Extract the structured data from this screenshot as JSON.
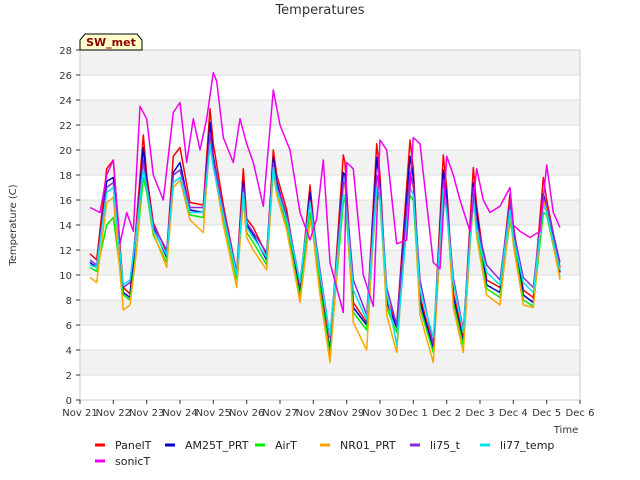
{
  "chart_data": {
    "type": "line",
    "title": "Temperatures",
    "xlabel": "Time",
    "ylabel": "Temperature (C)",
    "site_label": "SW_met",
    "ylim": [
      0,
      28
    ],
    "yticks": [
      0,
      2,
      4,
      6,
      8,
      10,
      12,
      14,
      16,
      18,
      20,
      22,
      24,
      26,
      28
    ],
    "xlim": [
      0,
      15
    ],
    "xticks": [
      {
        "x": 0,
        "label": "Nov 21"
      },
      {
        "x": 1,
        "label": "Nov 22"
      },
      {
        "x": 2,
        "label": "Nov 23"
      },
      {
        "x": 3,
        "label": "Nov 24"
      },
      {
        "x": 4,
        "label": "Nov 25"
      },
      {
        "x": 5,
        "label": "Nov 26"
      },
      {
        "x": 6,
        "label": "Nov 27"
      },
      {
        "x": 7,
        "label": "Nov 28"
      },
      {
        "x": 8,
        "label": "Nov 29"
      },
      {
        "x": 9,
        "label": "Nov 30"
      },
      {
        "x": 10,
        "label": "Dec 1"
      },
      {
        "x": 11,
        "label": "Dec 2"
      },
      {
        "x": 12,
        "label": "Dec 3"
      },
      {
        "x": 13,
        "label": "Dec 4"
      },
      {
        "x": 14,
        "label": "Dec 5"
      },
      {
        "x": 15,
        "label": "Dec 6"
      }
    ],
    "grid": true,
    "legend_position": "bottom",
    "series": [
      {
        "name": "PanelT",
        "color": "#ff0000",
        "x": [
          0.3,
          0.5,
          0.8,
          1.0,
          1.3,
          1.5,
          1.7,
          1.9,
          2.0,
          2.2,
          2.6,
          2.8,
          3.0,
          3.3,
          3.7,
          3.9,
          4.0,
          4.3,
          4.7,
          4.9,
          5.0,
          5.2,
          5.6,
          5.8,
          5.9,
          6.2,
          6.6,
          6.9,
          7.0,
          7.2,
          7.5,
          7.9,
          7.95,
          8.2,
          8.6,
          8.9,
          9.0,
          9.2,
          9.5,
          9.9,
          10.0,
          10.2,
          10.6,
          10.9,
          11.0,
          11.2,
          11.5,
          11.8,
          11.9,
          12.2,
          12.6,
          12.9,
          13.0,
          13.3,
          13.6,
          13.9,
          14.0,
          14.4
        ],
        "y": [
          11.7,
          11.2,
          18.5,
          19.2,
          9.0,
          8.5,
          14.5,
          21.2,
          18.0,
          14.2,
          11.8,
          19.5,
          20.2,
          15.8,
          15.6,
          23.3,
          20.5,
          15.6,
          10.2,
          18.5,
          14.5,
          13.8,
          11.6,
          20.0,
          18.0,
          15.2,
          8.8,
          17.2,
          14.5,
          9.6,
          4.0,
          19.6,
          19.0,
          7.8,
          6.2,
          20.5,
          18.0,
          8.2,
          6.0,
          20.8,
          18.5,
          8.3,
          4.2,
          19.6,
          17.0,
          8.6,
          5.0,
          18.6,
          15.5,
          9.6,
          9.0,
          16.5,
          14.0,
          8.8,
          8.2,
          17.8,
          16.0,
          10.6
        ]
      },
      {
        "name": "AM25T_PRT",
        "color": "#0000cc",
        "x": [
          0.3,
          0.5,
          0.8,
          1.0,
          1.3,
          1.5,
          1.7,
          1.9,
          2.0,
          2.2,
          2.6,
          2.8,
          3.0,
          3.3,
          3.7,
          3.9,
          4.0,
          4.3,
          4.7,
          4.9,
          5.0,
          5.2,
          5.6,
          5.8,
          5.9,
          6.2,
          6.6,
          6.9,
          7.0,
          7.2,
          7.5,
          7.9,
          7.95,
          8.2,
          8.6,
          8.9,
          9.0,
          9.2,
          9.5,
          9.9,
          10.0,
          10.2,
          10.6,
          10.9,
          11.0,
          11.2,
          11.5,
          11.8,
          11.9,
          12.2,
          12.6,
          12.9,
          13.0,
          13.3,
          13.6,
          13.9,
          14.0,
          14.4
        ],
        "y": [
          11.0,
          10.6,
          17.5,
          17.8,
          8.6,
          8.2,
          13.8,
          20.2,
          17.5,
          13.8,
          11.4,
          18.2,
          19.0,
          15.2,
          15.0,
          22.2,
          19.5,
          15.0,
          9.8,
          17.5,
          14.0,
          13.2,
          11.2,
          19.4,
          17.5,
          14.6,
          8.4,
          16.6,
          14.0,
          9.2,
          3.8,
          18.2,
          18.0,
          7.4,
          6.0,
          19.4,
          17.2,
          7.8,
          5.8,
          19.5,
          17.8,
          7.9,
          4.0,
          18.4,
          16.4,
          8.2,
          4.6,
          17.4,
          15.0,
          9.2,
          8.6,
          15.6,
          13.6,
          8.4,
          7.8,
          16.5,
          15.5,
          10.2
        ]
      },
      {
        "name": "AirT",
        "color": "#00ee00",
        "x": [
          0.3,
          0.5,
          0.8,
          1.0,
          1.3,
          1.5,
          1.7,
          1.9,
          2.0,
          2.2,
          2.6,
          2.8,
          3.0,
          3.3,
          3.7,
          3.9,
          4.0,
          4.3,
          4.7,
          4.9,
          5.0,
          5.2,
          5.6,
          5.8,
          5.9,
          6.2,
          6.6,
          6.9,
          7.0,
          7.2,
          7.5,
          7.9,
          7.95,
          8.2,
          8.6,
          8.9,
          9.0,
          9.2,
          9.5,
          9.9,
          10.0,
          10.2,
          10.6,
          10.9,
          11.0,
          11.2,
          11.5,
          11.8,
          11.9,
          12.2,
          12.6,
          12.9,
          13.0,
          13.3,
          13.6,
          13.9,
          14.0,
          14.4
        ],
        "y": [
          10.6,
          10.3,
          14.0,
          14.6,
          8.4,
          8.0,
          12.2,
          17.8,
          16.6,
          13.2,
          11.0,
          17.4,
          17.8,
          14.8,
          14.6,
          21.0,
          19.0,
          14.6,
          9.6,
          16.4,
          13.4,
          12.6,
          10.8,
          18.6,
          16.8,
          14.0,
          8.2,
          15.0,
          13.4,
          9.0,
          3.6,
          15.8,
          16.2,
          7.0,
          5.6,
          16.6,
          16.0,
          7.4,
          5.4,
          16.4,
          16.0,
          7.4,
          3.8,
          16.0,
          15.4,
          7.8,
          4.4,
          16.0,
          13.5,
          8.9,
          8.2,
          14.4,
          12.8,
          8.0,
          7.5,
          15.0,
          14.8,
          9.8
        ]
      },
      {
        "name": "NR01_PRT",
        "color": "#ffa500",
        "x": [
          0.3,
          0.5,
          0.8,
          1.0,
          1.3,
          1.5,
          1.7,
          1.9,
          2.0,
          2.2,
          2.6,
          2.8,
          3.0,
          3.3,
          3.7,
          3.9,
          4.0,
          4.3,
          4.7,
          4.9,
          5.0,
          5.2,
          5.6,
          5.8,
          5.9,
          6.2,
          6.6,
          6.9,
          7.0,
          7.2,
          7.5,
          7.9,
          7.95,
          8.2,
          8.6,
          8.9,
          9.0,
          9.2,
          9.5,
          9.9,
          10.0,
          10.2,
          10.6,
          10.9,
          11.0,
          11.2,
          11.5,
          11.8,
          11.9,
          12.2,
          12.6,
          12.9,
          13.0,
          13.3,
          13.6,
          13.9,
          14.0,
          14.4
        ],
        "y": [
          9.8,
          9.4,
          15.8,
          16.2,
          7.2,
          7.6,
          12.0,
          19.0,
          17.0,
          13.4,
          10.6,
          17.0,
          17.6,
          14.4,
          13.4,
          21.0,
          18.8,
          14.0,
          9.0,
          16.0,
          13.0,
          12.0,
          10.4,
          18.2,
          16.4,
          13.6,
          7.8,
          14.4,
          13.0,
          8.4,
          3.0,
          17.0,
          17.4,
          6.2,
          4.0,
          17.8,
          16.8,
          6.8,
          3.8,
          18.0,
          17.0,
          6.8,
          3.0,
          16.8,
          15.6,
          7.4,
          3.8,
          16.4,
          13.0,
          8.4,
          7.6,
          15.0,
          12.4,
          7.6,
          7.4,
          16.0,
          15.2,
          9.6
        ]
      },
      {
        "name": "li75_t",
        "color": "#8a2be2",
        "x": [
          0.3,
          0.5,
          0.8,
          1.0,
          1.3,
          1.5,
          1.7,
          1.9,
          2.0,
          2.2,
          2.6,
          2.8,
          3.0,
          3.3,
          3.7,
          3.9,
          4.0,
          4.3,
          4.7,
          4.9,
          5.0,
          5.2,
          5.6,
          5.8,
          5.9,
          6.2,
          6.6,
          6.9,
          7.0,
          7.2,
          7.5,
          7.9,
          7.95,
          8.2,
          8.6,
          8.9,
          9.0,
          9.2,
          9.5,
          9.9,
          10.0,
          10.2,
          10.6,
          10.9,
          11.0,
          11.2,
          11.5,
          11.8,
          11.9,
          12.2,
          12.6,
          12.9,
          13.0,
          13.3,
          13.6,
          13.9,
          14.0,
          14.4
        ],
        "y": [
          11.2,
          10.8,
          17.0,
          17.4,
          9.0,
          9.4,
          14.0,
          19.2,
          17.2,
          14.0,
          12.0,
          18.0,
          18.4,
          15.4,
          15.4,
          21.4,
          19.2,
          15.2,
          10.2,
          17.0,
          14.2,
          13.4,
          11.8,
          19.0,
          17.2,
          14.8,
          9.4,
          16.0,
          14.2,
          10.4,
          5.0,
          17.4,
          17.4,
          9.6,
          6.8,
          18.0,
          17.0,
          9.0,
          6.0,
          18.2,
          17.2,
          9.6,
          4.4,
          17.6,
          15.8,
          9.8,
          5.6,
          17.0,
          14.2,
          10.8,
          9.6,
          15.8,
          13.6,
          9.8,
          9.0,
          16.2,
          15.6,
          11.0
        ]
      },
      {
        "name": "li77_temp",
        "color": "#00e5ee",
        "x": [
          0.3,
          0.5,
          0.8,
          1.0,
          1.3,
          1.5,
          1.7,
          1.9,
          2.0,
          2.2,
          2.6,
          2.8,
          3.0,
          3.3,
          3.7,
          3.9,
          4.0,
          4.3,
          4.7,
          4.9,
          5.0,
          5.2,
          5.6,
          5.8,
          5.9,
          6.2,
          6.6,
          6.9,
          7.0,
          7.2,
          7.5,
          7.9,
          7.95,
          8.2,
          8.6,
          8.9,
          9.0,
          9.2,
          9.5,
          9.9,
          10.0,
          10.2,
          10.6,
          10.9,
          11.0,
          11.2,
          11.5,
          11.8,
          11.9,
          12.2,
          12.6,
          12.9,
          13.0,
          13.3,
          13.6,
          13.9,
          14.0,
          14.4
        ],
        "y": [
          10.8,
          10.6,
          16.6,
          17.0,
          9.2,
          9.6,
          13.6,
          18.4,
          17.0,
          13.6,
          11.6,
          17.4,
          17.8,
          15.0,
          15.0,
          20.4,
          18.6,
          14.8,
          10.0,
          16.6,
          13.8,
          13.0,
          11.4,
          18.6,
          16.8,
          14.4,
          9.4,
          15.8,
          13.8,
          10.0,
          5.2,
          16.4,
          16.4,
          8.8,
          6.4,
          17.0,
          16.2,
          8.6,
          4.4,
          17.0,
          16.4,
          8.8,
          5.0,
          16.8,
          15.0,
          9.4,
          5.4,
          16.2,
          13.6,
          10.2,
          9.2,
          15.2,
          13.0,
          9.4,
          8.6,
          15.6,
          15.0,
          10.4
        ]
      },
      {
        "name": "sonicT",
        "color": "#ee00ee",
        "x": [
          0.3,
          0.6,
          0.8,
          1.0,
          1.2,
          1.4,
          1.6,
          1.8,
          2.0,
          2.2,
          2.5,
          2.8,
          3.0,
          3.2,
          3.4,
          3.6,
          3.8,
          4.0,
          4.1,
          4.3,
          4.6,
          4.8,
          5.0,
          5.2,
          5.5,
          5.8,
          6.0,
          6.3,
          6.6,
          6.9,
          7.1,
          7.3,
          7.5,
          7.6,
          7.9,
          8.0,
          8.2,
          8.5,
          8.8,
          9.0,
          9.2,
          9.5,
          9.8,
          10.0,
          10.2,
          10.6,
          10.8,
          11.0,
          11.2,
          11.4,
          11.7,
          11.9,
          12.1,
          12.3,
          12.6,
          12.9,
          13.0,
          13.2,
          13.5,
          13.8,
          14.0,
          14.2,
          14.4
        ],
        "y": [
          15.4,
          15.0,
          18.0,
          19.2,
          12.5,
          15.0,
          13.5,
          23.5,
          22.5,
          18.0,
          16.0,
          23.0,
          23.8,
          19.0,
          22.5,
          20.0,
          22.5,
          26.2,
          25.5,
          21.0,
          19.0,
          22.5,
          20.5,
          19.0,
          15.5,
          24.8,
          22.0,
          20.0,
          15.0,
          12.8,
          14.5,
          19.2,
          11.0,
          10.0,
          7.0,
          19.0,
          18.5,
          10.0,
          7.5,
          20.8,
          20.0,
          12.5,
          12.8,
          21.0,
          20.5,
          11.0,
          10.5,
          19.5,
          18.0,
          16.0,
          13.5,
          18.5,
          16.0,
          15.0,
          15.5,
          17.0,
          14.0,
          13.5,
          13.0,
          13.5,
          18.8,
          15.0,
          13.8
        ]
      }
    ]
  }
}
